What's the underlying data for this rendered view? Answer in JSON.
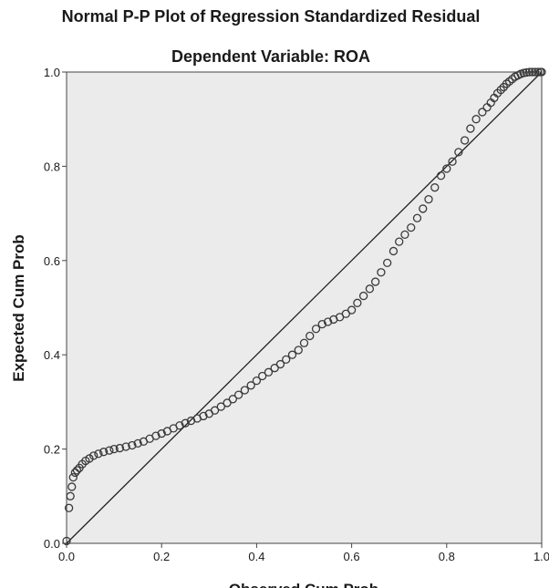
{
  "chart_data": {
    "type": "scatter",
    "title": "Normal P-P Plot of Regression Standardized Residual",
    "subtitle": "Dependent Variable: ROA",
    "xlabel": "Observed Cum Prob",
    "ylabel": "Expected Cum Prob",
    "xlim": [
      0,
      1
    ],
    "ylim": [
      0,
      1
    ],
    "x_ticks": [
      "0.0",
      "0.2",
      "0.4",
      "0.6",
      "0.8",
      "1.0"
    ],
    "y_ticks": [
      "0.0",
      "0.2",
      "0.4",
      "0.6",
      "0.8",
      "1.0"
    ],
    "grid": false,
    "legend": "none",
    "reference_line": [
      [
        0,
        0
      ],
      [
        1,
        1
      ]
    ],
    "colors": {
      "plot_bg": "#ebebeb",
      "point": "#3a3a3a",
      "line": "#222222",
      "axis": "#444444"
    },
    "series": [
      {
        "x": [
          0.0,
          0.005,
          0.008,
          0.011,
          0.014,
          0.018,
          0.022,
          0.027,
          0.033,
          0.04,
          0.048,
          0.057,
          0.067,
          0.078,
          0.09,
          0.1,
          0.112,
          0.125,
          0.138,
          0.15,
          0.162,
          0.175,
          0.188,
          0.2,
          0.212,
          0.225,
          0.238,
          0.25,
          0.262,
          0.275,
          0.288,
          0.3,
          0.312,
          0.325,
          0.338,
          0.35,
          0.362,
          0.375,
          0.388,
          0.4,
          0.412,
          0.425,
          0.438,
          0.45,
          0.462,
          0.475,
          0.488,
          0.5,
          0.512,
          0.525,
          0.538,
          0.55,
          0.562,
          0.575,
          0.588,
          0.6,
          0.612,
          0.625,
          0.638,
          0.65,
          0.662,
          0.675,
          0.688,
          0.7,
          0.712,
          0.725,
          0.738,
          0.75,
          0.762,
          0.775,
          0.788,
          0.8,
          0.812,
          0.825,
          0.838,
          0.85,
          0.862,
          0.875,
          0.885,
          0.893,
          0.9,
          0.907,
          0.914,
          0.92,
          0.926,
          0.932,
          0.938,
          0.944,
          0.95,
          0.956,
          0.962,
          0.968,
          0.974,
          0.98,
          0.986,
          0.992,
          0.997,
          1.0
        ],
        "y": [
          0.005,
          0.075,
          0.1,
          0.12,
          0.14,
          0.15,
          0.155,
          0.16,
          0.168,
          0.175,
          0.18,
          0.186,
          0.19,
          0.194,
          0.197,
          0.2,
          0.202,
          0.205,
          0.208,
          0.212,
          0.216,
          0.222,
          0.228,
          0.233,
          0.238,
          0.244,
          0.25,
          0.255,
          0.26,
          0.265,
          0.27,
          0.275,
          0.282,
          0.29,
          0.298,
          0.306,
          0.315,
          0.325,
          0.335,
          0.345,
          0.355,
          0.363,
          0.372,
          0.38,
          0.39,
          0.4,
          0.41,
          0.425,
          0.44,
          0.455,
          0.465,
          0.47,
          0.475,
          0.48,
          0.487,
          0.495,
          0.51,
          0.525,
          0.54,
          0.555,
          0.575,
          0.595,
          0.62,
          0.64,
          0.655,
          0.67,
          0.69,
          0.71,
          0.73,
          0.755,
          0.78,
          0.795,
          0.81,
          0.83,
          0.855,
          0.88,
          0.9,
          0.915,
          0.925,
          0.935,
          0.945,
          0.955,
          0.962,
          0.968,
          0.975,
          0.98,
          0.985,
          0.99,
          0.993,
          0.996,
          0.998,
          0.999,
          1.0,
          1.0,
          1.0,
          1.0,
          1.0,
          1.0
        ]
      }
    ]
  }
}
